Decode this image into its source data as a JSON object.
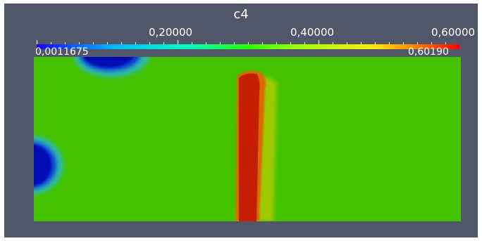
{
  "window": {
    "background_color": "#525669"
  },
  "colorbar": {
    "title": "c4",
    "tick_labels": [
      "0,20000",
      "0,40000",
      "0,60000"
    ],
    "tick_values": [
      0.2,
      0.4,
      0.6
    ],
    "range_min_label": "0,0011675",
    "range_max_label": "0,60190",
    "range_min": 0.0011675,
    "range_max": 0.6019,
    "colormap": [
      "#1a00ff",
      "#00b7ff",
      "#00ffbf",
      "#2bff00",
      "#9fff00",
      "#ffea00",
      "#ff7a00",
      "#ff0000"
    ]
  },
  "field": {
    "background_color": "#43c300",
    "low_color": "#0010b5",
    "high_color": "#c41f00"
  }
}
